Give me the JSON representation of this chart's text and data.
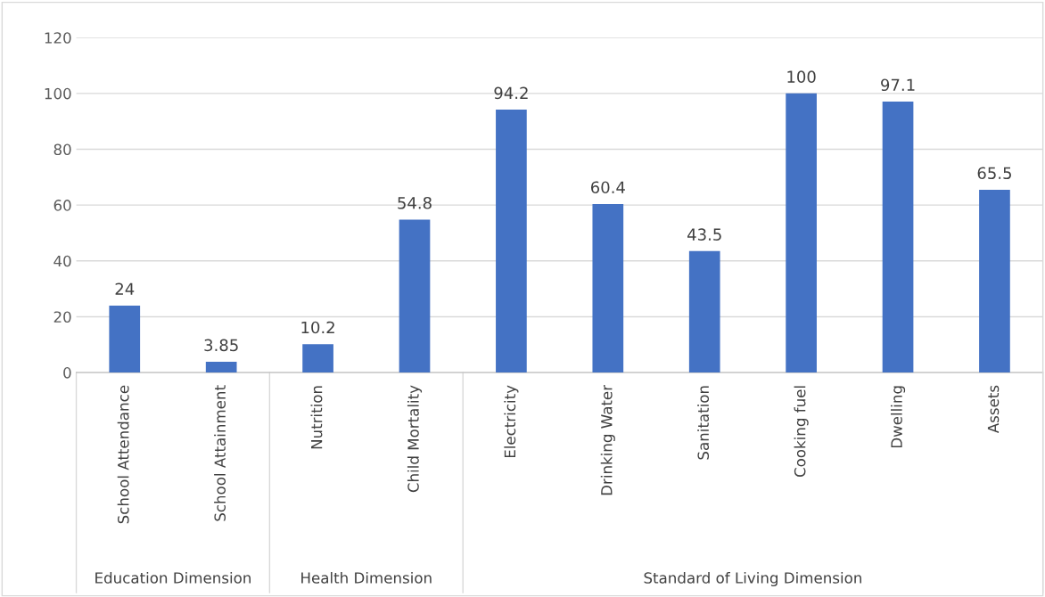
{
  "chart_data": {
    "type": "bar",
    "categories": [
      "School Attendance",
      "School Attainment",
      "Nutrition",
      "Child Mortality",
      "Electricity",
      "Drinking Water",
      "Sanitation",
      "Cooking fuel",
      "Dwelling",
      "Assets"
    ],
    "values": [
      24,
      3.85,
      10.2,
      54.8,
      94.2,
      60.4,
      43.5,
      100,
      97.1,
      65.5
    ],
    "color": "#4472c4",
    "ylim": [
      0,
      120
    ],
    "yticks": [
      0,
      20,
      40,
      60,
      80,
      100,
      120
    ],
    "grid": "y",
    "data_labels": true,
    "legend": false,
    "annotations": [
      "Education Dimension",
      "Health Dimension",
      "Standard of Living Dimension"
    ]
  }
}
